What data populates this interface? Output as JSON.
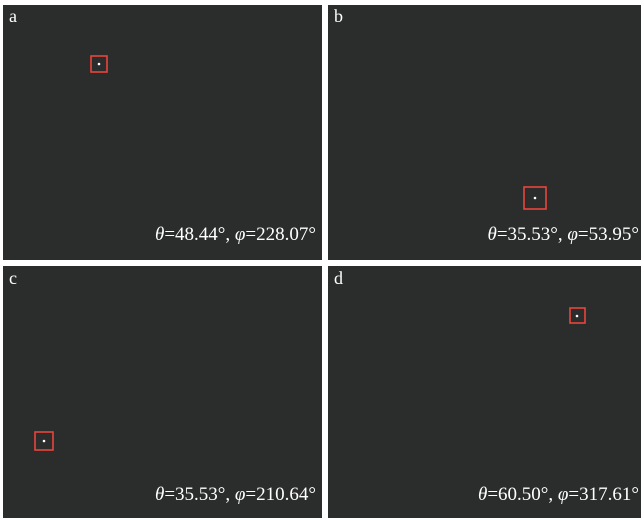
{
  "panels": [
    {
      "label": "a",
      "sym1": "θ",
      "val1": "=48.44°, ",
      "sym2": "φ",
      "val2": "=228.07°"
    },
    {
      "label": "b",
      "sym1": "θ",
      "val1": "=35.53°, ",
      "sym2": "φ",
      "val2": "=53.95°"
    },
    {
      "label": "c",
      "sym1": "θ",
      "val1": "=35.53°, ",
      "sym2": "φ",
      "val2": "=210.64°"
    },
    {
      "label": "d",
      "sym1": "θ",
      "val1": "=60.50°, ",
      "sym2": "φ",
      "val2": "=317.61°"
    }
  ]
}
